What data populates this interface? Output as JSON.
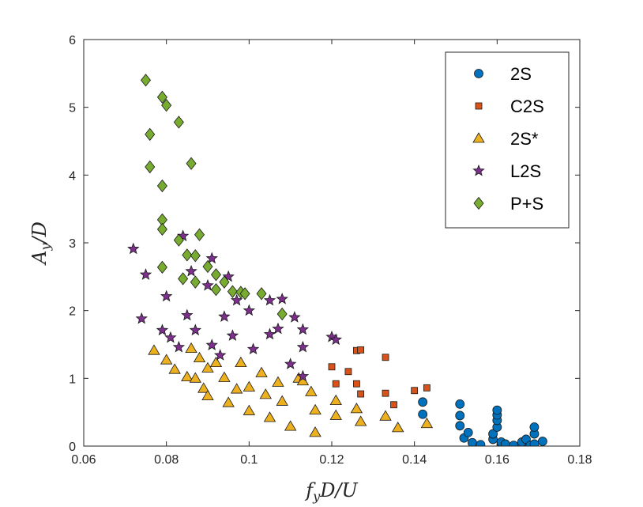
{
  "chart_data": {
    "type": "scatter",
    "title": "",
    "xlabel": "f_yD/U",
    "ylabel": "A_y/D",
    "xlim": [
      0.06,
      0.18
    ],
    "ylim": [
      0,
      6
    ],
    "xticks": [
      "0.06",
      "0.08",
      "0.1",
      "0.12",
      "0.14",
      "0.16",
      "0.18"
    ],
    "yticks": [
      "0",
      "1",
      "2",
      "3",
      "4",
      "5",
      "6"
    ],
    "grid": false,
    "legend_position": "top-right",
    "series": [
      {
        "name": "2S",
        "marker": "circle",
        "color": "#0072BD",
        "points": [
          [
            0.142,
            0.65
          ],
          [
            0.142,
            0.47
          ],
          [
            0.151,
            0.62
          ],
          [
            0.151,
            0.45
          ],
          [
            0.151,
            0.3
          ],
          [
            0.152,
            0.12
          ],
          [
            0.153,
            0.2
          ],
          [
            0.154,
            0.05
          ],
          [
            0.156,
            0.02
          ],
          [
            0.159,
            0.1
          ],
          [
            0.159,
            0.18
          ],
          [
            0.16,
            0.28
          ],
          [
            0.16,
            0.38
          ],
          [
            0.16,
            0.46
          ],
          [
            0.16,
            0.53
          ],
          [
            0.161,
            0.02
          ],
          [
            0.161,
            0.06
          ],
          [
            0.162,
            0.03
          ],
          [
            0.164,
            0.01
          ],
          [
            0.166,
            0.02
          ],
          [
            0.166,
            0.06
          ],
          [
            0.167,
            0.1
          ],
          [
            0.168,
            0.01
          ],
          [
            0.169,
            0.03
          ],
          [
            0.169,
            0.18
          ],
          [
            0.169,
            0.28
          ],
          [
            0.171,
            0.07
          ]
        ]
      },
      {
        "name": "C2S",
        "marker": "square",
        "color": "#D95319",
        "points": [
          [
            0.12,
            1.17
          ],
          [
            0.121,
            0.92
          ],
          [
            0.124,
            1.1
          ],
          [
            0.126,
            0.92
          ],
          [
            0.126,
            1.41
          ],
          [
            0.127,
            1.42
          ],
          [
            0.127,
            0.77
          ],
          [
            0.133,
            1.31
          ],
          [
            0.133,
            0.78
          ],
          [
            0.135,
            0.61
          ],
          [
            0.14,
            0.82
          ],
          [
            0.143,
            0.86
          ]
        ]
      },
      {
        "name": "2S*",
        "marker": "triangle",
        "color": "#EDB120",
        "points": [
          [
            0.077,
            1.41
          ],
          [
            0.08,
            1.27
          ],
          [
            0.082,
            1.13
          ],
          [
            0.085,
            1.02
          ],
          [
            0.086,
            1.44
          ],
          [
            0.087,
            1.0
          ],
          [
            0.088,
            1.3
          ],
          [
            0.089,
            0.85
          ],
          [
            0.09,
            0.74
          ],
          [
            0.09,
            1.15
          ],
          [
            0.092,
            1.23
          ],
          [
            0.094,
            1.01
          ],
          [
            0.095,
            0.64
          ],
          [
            0.097,
            0.84
          ],
          [
            0.098,
            1.23
          ],
          [
            0.1,
            0.87
          ],
          [
            0.1,
            0.52
          ],
          [
            0.103,
            1.08
          ],
          [
            0.104,
            0.76
          ],
          [
            0.105,
            0.42
          ],
          [
            0.107,
            0.94
          ],
          [
            0.108,
            0.66
          ],
          [
            0.11,
            0.29
          ],
          [
            0.112,
            1.0
          ],
          [
            0.113,
            0.96
          ],
          [
            0.115,
            0.8
          ],
          [
            0.116,
            0.53
          ],
          [
            0.116,
            0.2
          ],
          [
            0.121,
            0.67
          ],
          [
            0.121,
            0.45
          ],
          [
            0.126,
            0.55
          ],
          [
            0.127,
            0.36
          ],
          [
            0.133,
            0.44
          ],
          [
            0.136,
            0.27
          ],
          [
            0.143,
            0.33
          ]
        ]
      },
      {
        "name": "L2S",
        "marker": "star",
        "color": "#7E2F8E",
        "points": [
          [
            0.072,
            2.91
          ],
          [
            0.074,
            1.88
          ],
          [
            0.075,
            2.53
          ],
          [
            0.079,
            1.71
          ],
          [
            0.08,
            2.21
          ],
          [
            0.081,
            1.6
          ],
          [
            0.083,
            1.46
          ],
          [
            0.084,
            3.1
          ],
          [
            0.085,
            1.93
          ],
          [
            0.086,
            2.58
          ],
          [
            0.087,
            1.71
          ],
          [
            0.09,
            2.37
          ],
          [
            0.091,
            1.49
          ],
          [
            0.091,
            2.77
          ],
          [
            0.093,
            1.34
          ],
          [
            0.094,
            1.91
          ],
          [
            0.095,
            2.5
          ],
          [
            0.096,
            1.63
          ],
          [
            0.097,
            2.15
          ],
          [
            0.1,
            2.0
          ],
          [
            0.101,
            1.43
          ],
          [
            0.105,
            1.65
          ],
          [
            0.105,
            2.15
          ],
          [
            0.107,
            1.73
          ],
          [
            0.108,
            2.17
          ],
          [
            0.11,
            1.21
          ],
          [
            0.111,
            1.9
          ],
          [
            0.113,
            1.46
          ],
          [
            0.113,
            1.72
          ],
          [
            0.12,
            1.61
          ],
          [
            0.121,
            1.57
          ],
          [
            0.113,
            1.03
          ]
        ]
      },
      {
        "name": "P+S",
        "marker": "diamond",
        "color": "#77AC30",
        "points": [
          [
            0.075,
            5.4
          ],
          [
            0.076,
            4.6
          ],
          [
            0.076,
            4.12
          ],
          [
            0.079,
            5.15
          ],
          [
            0.079,
            3.84
          ],
          [
            0.079,
            3.34
          ],
          [
            0.079,
            3.2
          ],
          [
            0.079,
            2.64
          ],
          [
            0.08,
            5.03
          ],
          [
            0.083,
            4.78
          ],
          [
            0.083,
            3.04
          ],
          [
            0.084,
            2.47
          ],
          [
            0.085,
            2.82
          ],
          [
            0.086,
            4.17
          ],
          [
            0.087,
            2.81
          ],
          [
            0.087,
            2.42
          ],
          [
            0.088,
            3.12
          ],
          [
            0.09,
            2.65
          ],
          [
            0.092,
            2.53
          ],
          [
            0.092,
            2.31
          ],
          [
            0.094,
            2.42
          ],
          [
            0.096,
            2.28
          ],
          [
            0.098,
            2.27
          ],
          [
            0.099,
            2.25
          ],
          [
            0.103,
            2.25
          ],
          [
            0.108,
            1.95
          ]
        ]
      }
    ]
  }
}
